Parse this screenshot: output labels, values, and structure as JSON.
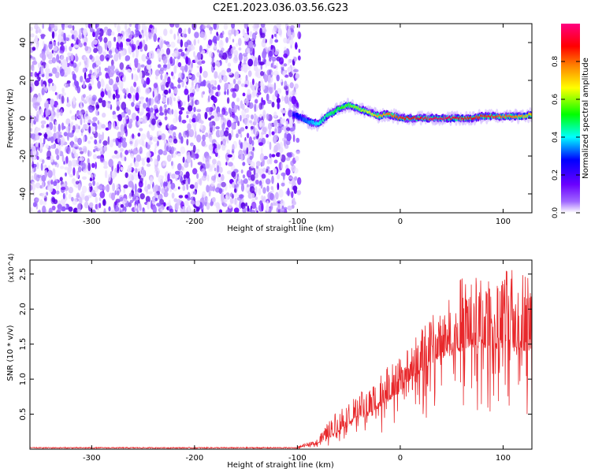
{
  "figure": {
    "title": "C2E1.2023.036.03.56.G23"
  },
  "chart_data": [
    {
      "type": "heatmap",
      "xlabel": "Height of straight line (km)",
      "ylabel": "Frequency (Hz)",
      "xlim": [
        -360,
        128
      ],
      "ylim": [
        -50,
        50
      ],
      "xticks": [
        -300,
        -200,
        -100,
        0,
        100
      ],
      "yticks": [
        -40,
        -20,
        0,
        20,
        40
      ],
      "colorbar": {
        "label": "Normalized spectral amplitude",
        "range": [
          0,
          1
        ],
        "ticks": [
          "0.0",
          "0.2",
          "0.4",
          "0.6",
          "0.8"
        ],
        "colors": [
          "#ffffff",
          "#6a00ff",
          "#0000ff",
          "#00ffff",
          "#00ff00",
          "#ffff00",
          "#ff8000",
          "#ff0000",
          "#ff0080"
        ]
      },
      "noise_region": {
        "x_range": [
          -360,
          -98
        ],
        "freq_range": [
          -50,
          50
        ],
        "amplitude": "low (0.0-0.1)",
        "color": "#6a00ff"
      },
      "signal_track": {
        "x": [
          -104,
          -95,
          -88,
          -80,
          -75,
          -70,
          -65,
          -60,
          -55,
          -50,
          -45,
          -40,
          -35,
          -30,
          -25,
          -20,
          -15,
          -10,
          -5,
          0,
          10,
          20,
          30,
          40,
          50,
          60,
          70,
          80,
          90,
          100,
          110,
          120,
          128
        ],
        "freq": [
          2,
          0,
          -2,
          -3,
          -1,
          2,
          3,
          5,
          6,
          7,
          6,
          5,
          4,
          3,
          2,
          1,
          2,
          2,
          1,
          0,
          0,
          0,
          0,
          0,
          0,
          0,
          0,
          1,
          1,
          1,
          1,
          1,
          2
        ],
        "amplitude": [
          0.25,
          0.3,
          0.35,
          0.4,
          0.45,
          0.45,
          0.5,
          0.5,
          0.55,
          0.55,
          0.6,
          0.6,
          0.62,
          0.65,
          0.7,
          0.75,
          0.75,
          0.8,
          0.8,
          0.85,
          0.9,
          0.9,
          0.95,
          0.95,
          0.92,
          0.9,
          0.9,
          0.85,
          0.85,
          0.8,
          0.8,
          0.75,
          0.7
        ]
      }
    },
    {
      "type": "line",
      "xlabel": "Height of straight line (km)",
      "ylabel": "SNR (10 * v/v)",
      "y_multiplier": "(x10^4)",
      "xlim": [
        -360,
        128
      ],
      "ylim": [
        0,
        27000
      ],
      "xticks": [
        -300,
        -200,
        -100,
        0,
        100
      ],
      "yticks": [
        0.5,
        1.0,
        1.5,
        2.0,
        2.5
      ],
      "ytick_labels": [
        "0.5",
        "1.0",
        "1.5",
        "2.0",
        "2.5"
      ],
      "series": [
        {
          "color": "#e8282b",
          "envelope": {
            "x": [
              -360,
              -100,
              -80,
              -70,
              -60,
              -50,
              -40,
              -30,
              -20,
              -10,
              0,
              10,
              20,
              30,
              40,
              50,
              60,
              70,
              80,
              90,
              100,
              110,
              120,
              128
            ],
            "baseline": [
              200,
              200,
              800,
              1500,
              2500,
              3500,
              4500,
              5000,
              6000,
              7000,
              8000,
              10000,
              11000,
              12000,
              13000,
              14000,
              14000,
              14500,
              14500,
              14000,
              14500,
              14500,
              14000,
              14000
            ],
            "peak": [
              300,
              400,
              1500,
              4000,
              6000,
              7000,
              8000,
              9000,
              11000,
              12000,
              13000,
              15000,
              17000,
              19000,
              21000,
              21500,
              25000,
              25000,
              24500,
              24000,
              26000,
              25500,
              26500,
              25000
            ]
          }
        }
      ]
    }
  ]
}
